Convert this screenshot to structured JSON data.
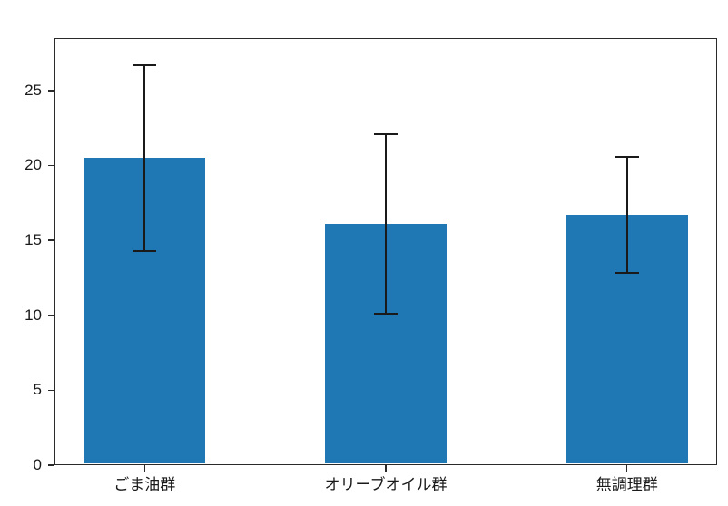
{
  "chart_data": {
    "type": "bar",
    "title": "",
    "xlabel": "",
    "ylabel": "",
    "categories": [
      "ごま油群",
      "オリーブオイル群",
      "無調理群"
    ],
    "values": [
      20.5,
      16.1,
      16.7
    ],
    "errors": [
      6.2,
      6.0,
      3.85
    ],
    "ylim": [
      0,
      28.5
    ],
    "yticks": [
      0,
      5,
      10,
      15,
      20,
      25
    ],
    "grid": false,
    "legend": false,
    "bar_color": "#1f77b4",
    "error_bar_color": "#1a1a1a",
    "axis_color": "#2a2a2a"
  }
}
